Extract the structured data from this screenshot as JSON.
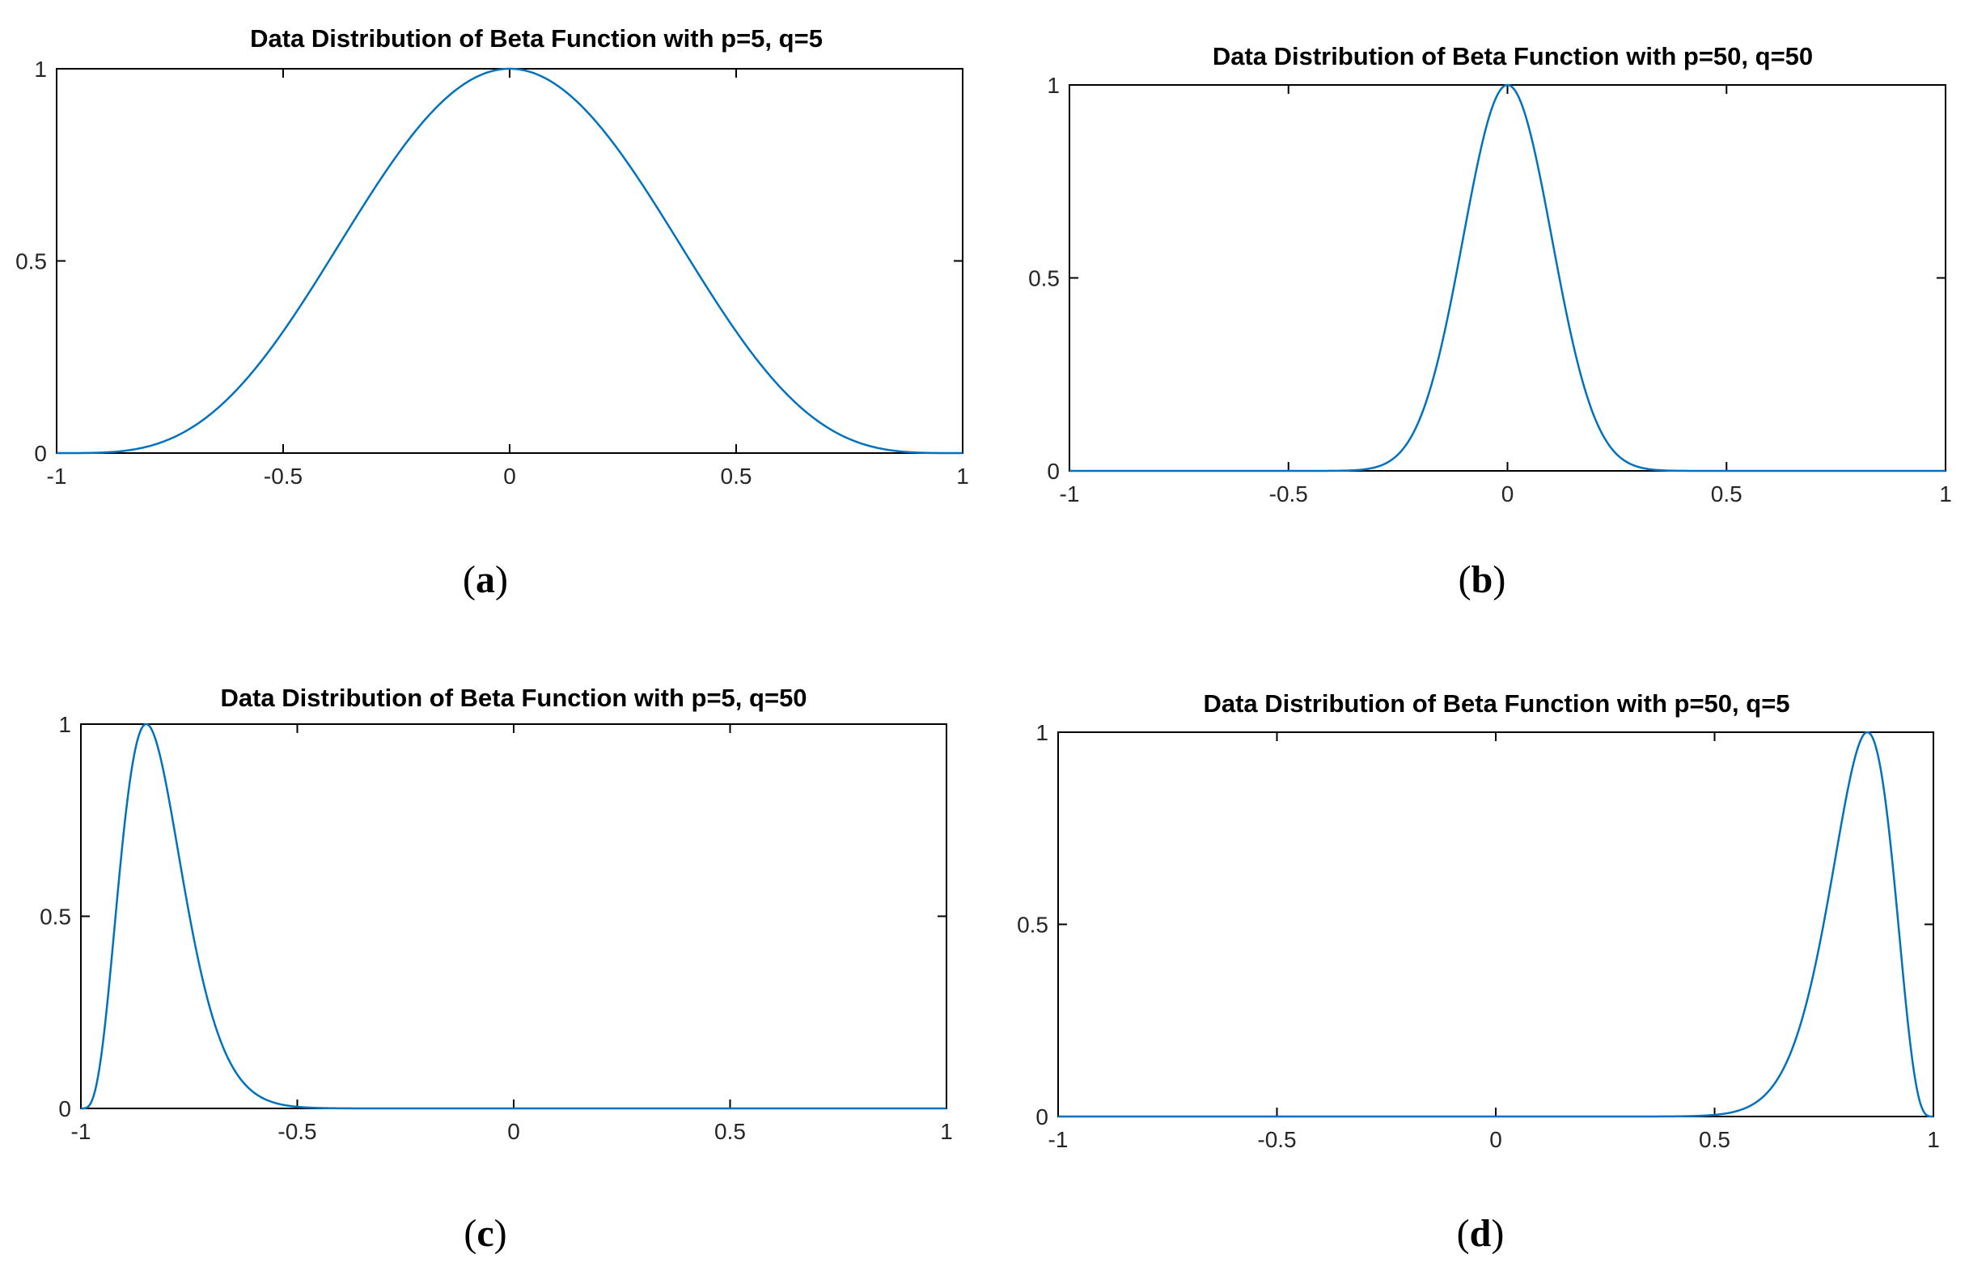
{
  "chart_data": [
    {
      "type": "line",
      "panel_label": "a",
      "title": "Data Distribution of Beta Function with p=5, q=5",
      "xlabel": "",
      "ylabel": "",
      "xlim": [
        -1,
        1
      ],
      "ylim": [
        0,
        1
      ],
      "xticks": [
        -1,
        -0.5,
        0,
        0.5,
        1
      ],
      "xtick_labels": [
        "-1",
        "-0.5",
        "0",
        "0.5",
        "1"
      ],
      "yticks": [
        0,
        0.5,
        1
      ],
      "ytick_labels": [
        "0",
        "0.5",
        "1"
      ],
      "grid": false,
      "series": [
        {
          "p": 5,
          "q": 5,
          "color": "#0072BD",
          "x": [
            -1,
            -0.8,
            -0.6,
            -0.4,
            -0.2,
            0,
            0.2,
            0.4,
            0.6,
            0.8,
            1
          ],
          "y": [
            0,
            0.01,
            0.11,
            0.4,
            0.78,
            1,
            0.78,
            0.4,
            0.11,
            0.01,
            0
          ]
        }
      ]
    },
    {
      "type": "line",
      "panel_label": "b",
      "title": "Data Distribution of Beta Function with p=50, q=50",
      "xlabel": "",
      "ylabel": "",
      "xlim": [
        -1,
        1
      ],
      "ylim": [
        0,
        1
      ],
      "xticks": [
        -1,
        -0.5,
        0,
        0.5,
        1
      ],
      "xtick_labels": [
        "-1",
        "-0.5",
        "0",
        "0.5",
        "1"
      ],
      "yticks": [
        0,
        0.5,
        1
      ],
      "ytick_labels": [
        "0",
        "0.5",
        "1"
      ],
      "grid": false,
      "series": [
        {
          "p": 50,
          "q": 50,
          "color": "#0072BD",
          "x": [
            -1,
            -0.3,
            -0.2,
            -0.1,
            0,
            0.1,
            0.2,
            0.3,
            1
          ],
          "y": [
            0,
            0.01,
            0.13,
            0.6,
            1,
            0.6,
            0.13,
            0.01,
            0
          ]
        }
      ]
    },
    {
      "type": "line",
      "panel_label": "c",
      "title": "Data Distribution of Beta Function with p=5, q=50",
      "xlabel": "",
      "ylabel": "",
      "xlim": [
        -1,
        1
      ],
      "ylim": [
        0,
        1
      ],
      "xticks": [
        -1,
        -0.5,
        0,
        0.5,
        1
      ],
      "xtick_labels": [
        "-1",
        "-0.5",
        "0",
        "0.5",
        "1"
      ],
      "yticks": [
        0,
        0.5,
        1
      ],
      "ytick_labels": [
        "0",
        "0.5",
        "1"
      ],
      "grid": false,
      "series": [
        {
          "p": 5,
          "q": 50,
          "color": "#0072BD",
          "x": [
            -1,
            -0.95,
            -0.9,
            -0.82,
            -0.75,
            -0.7,
            -0.6,
            -0.5,
            1
          ],
          "y": [
            0,
            0.23,
            0.81,
            1,
            0.81,
            0.55,
            0.13,
            0.01,
            0
          ]
        }
      ]
    },
    {
      "type": "line",
      "panel_label": "d",
      "title": "Data Distribution of Beta Function with p=50, q=5",
      "xlabel": "",
      "ylabel": "",
      "xlim": [
        -1,
        1
      ],
      "ylim": [
        0,
        1
      ],
      "xticks": [
        -1,
        -0.5,
        0,
        0.5,
        1
      ],
      "xtick_labels": [
        "-1",
        "-0.5",
        "0",
        "0.5",
        "1"
      ],
      "yticks": [
        0,
        0.5,
        1
      ],
      "ytick_labels": [
        "0",
        "0.5",
        "1"
      ],
      "grid": false,
      "series": [
        {
          "p": 50,
          "q": 5,
          "color": "#0072BD",
          "x": [
            -1,
            0.5,
            0.6,
            0.7,
            0.75,
            0.82,
            0.9,
            0.95,
            1
          ],
          "y": [
            0,
            0.01,
            0.13,
            0.55,
            0.81,
            1,
            0.81,
            0.23,
            0
          ]
        }
      ]
    }
  ]
}
